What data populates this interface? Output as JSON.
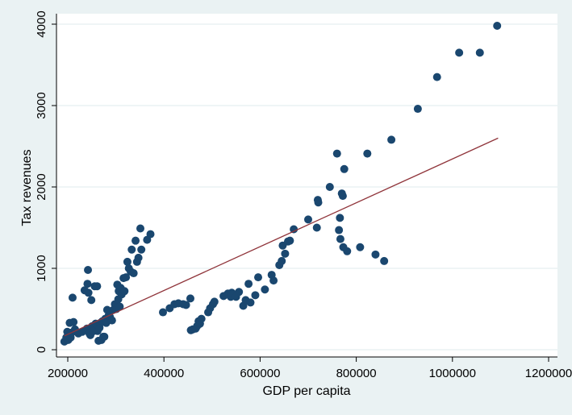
{
  "chart_data": {
    "type": "scatter",
    "xlabel": "GDP per capita",
    "ylabel": "Tax revenues",
    "xlim": [
      200000,
      1200000
    ],
    "ylim": [
      0,
      4000
    ],
    "xticks": [
      200000,
      400000,
      600000,
      800000,
      1000000,
      1200000
    ],
    "yticks": [
      0,
      1000,
      2000,
      3000,
      4000
    ],
    "grid": true,
    "colors": {
      "points": "#1a476f",
      "fit_line": "#90353b",
      "plot_bg": "#ffffff",
      "outer_bg": "#eaf2f3",
      "grid": "#eaf2f3"
    },
    "fit_line": {
      "x": [
        193000,
        1095000
      ],
      "y": [
        170,
        2600
      ]
    },
    "points": [
      [
        193000,
        100
      ],
      [
        197000,
        150
      ],
      [
        199000,
        220
      ],
      [
        201000,
        120
      ],
      [
        202000,
        180
      ],
      [
        204000,
        330
      ],
      [
        206000,
        150
      ],
      [
        208000,
        210
      ],
      [
        210000,
        640
      ],
      [
        212000,
        340
      ],
      [
        215000,
        250
      ],
      [
        222000,
        200
      ],
      [
        230000,
        220
      ],
      [
        235000,
        730
      ],
      [
        240000,
        260
      ],
      [
        241000,
        810
      ],
      [
        242000,
        980
      ],
      [
        243000,
        700
      ],
      [
        245000,
        200
      ],
      [
        247000,
        180
      ],
      [
        249000,
        610
      ],
      [
        251000,
        290
      ],
      [
        254000,
        230
      ],
      [
        256000,
        780
      ],
      [
        258000,
        320
      ],
      [
        261000,
        780
      ],
      [
        262000,
        230
      ],
      [
        264000,
        110
      ],
      [
        266000,
        270
      ],
      [
        268000,
        330
      ],
      [
        270000,
        120
      ],
      [
        272000,
        350
      ],
      [
        274000,
        160
      ],
      [
        276000,
        160
      ],
      [
        278000,
        380
      ],
      [
        280000,
        330
      ],
      [
        282000,
        490
      ],
      [
        285000,
        420
      ],
      [
        288000,
        400
      ],
      [
        292000,
        360
      ],
      [
        295000,
        490
      ],
      [
        298000,
        560
      ],
      [
        301000,
        500
      ],
      [
        303000,
        800
      ],
      [
        305000,
        620
      ],
      [
        306000,
        720
      ],
      [
        308000,
        530
      ],
      [
        310000,
        760
      ],
      [
        312000,
        680
      ],
      [
        316000,
        880
      ],
      [
        318000,
        720
      ],
      [
        321000,
        890
      ],
      [
        324000,
        1080
      ],
      [
        327000,
        1000
      ],
      [
        331000,
        960
      ],
      [
        333000,
        1230
      ],
      [
        337000,
        940
      ],
      [
        341000,
        1340
      ],
      [
        344000,
        1080
      ],
      [
        347000,
        1130
      ],
      [
        351000,
        1490
      ],
      [
        353000,
        1230
      ],
      [
        365000,
        1350
      ],
      [
        372000,
        1420
      ],
      [
        398000,
        460
      ],
      [
        412000,
        510
      ],
      [
        422000,
        560
      ],
      [
        430000,
        570
      ],
      [
        440000,
        560
      ],
      [
        446000,
        550
      ],
      [
        455000,
        630
      ],
      [
        456000,
        240
      ],
      [
        460000,
        250
      ],
      [
        466000,
        260
      ],
      [
        469000,
        290
      ],
      [
        472000,
        350
      ],
      [
        475000,
        320
      ],
      [
        478000,
        380
      ],
      [
        492000,
        460
      ],
      [
        496000,
        510
      ],
      [
        502000,
        560
      ],
      [
        505000,
        590
      ],
      [
        524000,
        660
      ],
      [
        533000,
        690
      ],
      [
        539000,
        650
      ],
      [
        541000,
        700
      ],
      [
        550000,
        650
      ],
      [
        556000,
        710
      ],
      [
        565000,
        540
      ],
      [
        570000,
        610
      ],
      [
        576000,
        810
      ],
      [
        580000,
        580
      ],
      [
        590000,
        670
      ],
      [
        596000,
        890
      ],
      [
        610000,
        740
      ],
      [
        624000,
        920
      ],
      [
        628000,
        850
      ],
      [
        640000,
        1040
      ],
      [
        645000,
        1090
      ],
      [
        647000,
        1280
      ],
      [
        652000,
        1180
      ],
      [
        658000,
        1330
      ],
      [
        662000,
        1340
      ],
      [
        670000,
        1480
      ],
      [
        700000,
        1600
      ],
      [
        718000,
        1500
      ],
      [
        720000,
        1840
      ],
      [
        721000,
        1810
      ],
      [
        745000,
        2000
      ],
      [
        760000,
        2410
      ],
      [
        764000,
        1470
      ],
      [
        766000,
        1620
      ],
      [
        767000,
        1360
      ],
      [
        770000,
        1920
      ],
      [
        772000,
        1890
      ],
      [
        773000,
        1260
      ],
      [
        775000,
        2220
      ],
      [
        781000,
        1210
      ],
      [
        808000,
        1260
      ],
      [
        823000,
        2410
      ],
      [
        840000,
        1170
      ],
      [
        858000,
        1090
      ],
      [
        873000,
        2580
      ],
      [
        928000,
        2960
      ],
      [
        968000,
        3350
      ],
      [
        1014000,
        3650
      ],
      [
        1057000,
        3650
      ],
      [
        1093000,
        3980
      ]
    ]
  }
}
